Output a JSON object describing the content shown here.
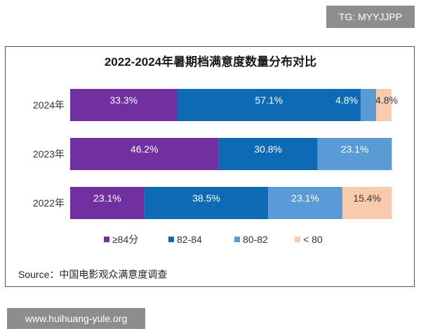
{
  "watermarks": {
    "top_right": "TG: MYYJJPP",
    "bottom_left": "www.huihuang-yule.org"
  },
  "source": "Source：中国电影观众满意度调查",
  "chart_data": {
    "type": "bar",
    "orientation": "horizontal",
    "stacked": true,
    "title": "2022-2024年暑期档满意度数量分布对比",
    "categories": [
      "2024年",
      "2023年",
      "2022年"
    ],
    "series": [
      {
        "name": "≥84分",
        "color": "#7030a0",
        "values": [
          33.3,
          46.2,
          23.1
        ],
        "labels": [
          "33.3%",
          "46.2%",
          "23.1%"
        ]
      },
      {
        "name": "82-84",
        "color": "#0e6ab5",
        "values": [
          57.1,
          30.8,
          38.5
        ],
        "labels": [
          "57.1%",
          "30.8%",
          "38.5%"
        ]
      },
      {
        "name": "80-82",
        "color": "#5b9bd5",
        "values": [
          4.8,
          23.1,
          23.1
        ],
        "labels": [
          "4.8%",
          "23.1%",
          "23.1%"
        ]
      },
      {
        "name": "< 80",
        "color": "#f8cbad",
        "values": [
          4.8,
          0,
          15.4
        ],
        "labels": [
          "4.8%",
          "",
          "15.4%"
        ]
      }
    ],
    "xlim": [
      0,
      100
    ],
    "legend_position": "bottom",
    "grid": false
  }
}
